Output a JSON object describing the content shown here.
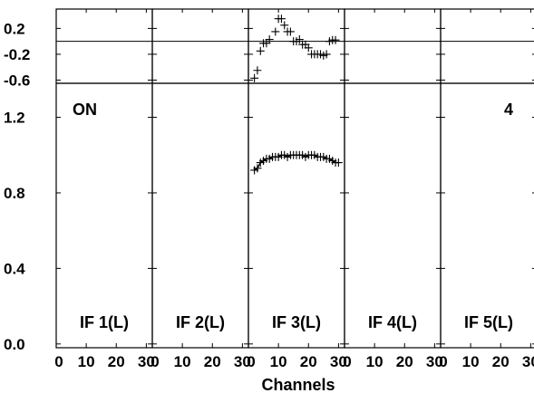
{
  "chart_data": {
    "type": "scatter",
    "xlabel": "Channels",
    "x_tick_labels": [
      "0",
      "10",
      "20",
      "30"
    ],
    "xlim": [
      0,
      32
    ],
    "panels": [
      {
        "label": "IF 1(L)",
        "ratio": [],
        "amplitude": []
      },
      {
        "label": "IF 2(L)",
        "ratio": [],
        "amplitude": []
      },
      {
        "label": "IF 3(L)",
        "ratio": [
          [
            2,
            -0.57
          ],
          [
            3,
            -0.45
          ],
          [
            4,
            -0.15
          ],
          [
            5,
            -0.03
          ],
          [
            6,
            -0.03
          ],
          [
            7,
            0.03
          ],
          [
            9,
            0.15
          ],
          [
            10,
            0.35
          ],
          [
            11,
            0.35
          ],
          [
            12,
            0.25
          ],
          [
            13,
            0.15
          ],
          [
            14,
            0.15
          ],
          [
            15,
            0.0
          ],
          [
            16,
            0.0
          ],
          [
            17,
            0.03
          ],
          [
            18,
            -0.05
          ],
          [
            19,
            -0.05
          ],
          [
            20,
            -0.1
          ],
          [
            21,
            -0.2
          ],
          [
            22,
            -0.2
          ],
          [
            23,
            -0.2
          ],
          [
            24,
            -0.2
          ],
          [
            25,
            -0.22
          ],
          [
            26,
            -0.2
          ],
          [
            27,
            0.0
          ],
          [
            28,
            0.02
          ],
          [
            29,
            0.02
          ]
        ],
        "amplitude": [
          [
            2,
            0.92
          ],
          [
            3,
            0.93
          ],
          [
            4,
            0.96
          ],
          [
            5,
            0.97
          ],
          [
            6,
            0.98
          ],
          [
            7,
            0.98
          ],
          [
            8,
            0.99
          ],
          [
            9,
            0.99
          ],
          [
            10,
            0.99
          ],
          [
            11,
            1.0
          ],
          [
            12,
            1.0
          ],
          [
            13,
            0.99
          ],
          [
            14,
            1.0
          ],
          [
            15,
            1.0
          ],
          [
            16,
            1.0
          ],
          [
            17,
            1.0
          ],
          [
            18,
            1.0
          ],
          [
            19,
            0.99
          ],
          [
            20,
            1.0
          ],
          [
            21,
            1.0
          ],
          [
            22,
            1.0
          ],
          [
            23,
            0.99
          ],
          [
            24,
            0.99
          ],
          [
            25,
            0.99
          ],
          [
            26,
            0.98
          ],
          [
            27,
            0.98
          ],
          [
            28,
            0.97
          ],
          [
            29,
            0.96
          ],
          [
            30,
            0.96
          ]
        ]
      },
      {
        "label": "IF 4(L)",
        "ratio": [],
        "amplitude": []
      },
      {
        "label": "IF 5(L)",
        "ratio": [],
        "amplitude": []
      }
    ],
    "top_y_tick_labels": [
      "0.2",
      "-0.2",
      "-0.6"
    ],
    "top_ylim": [
      -0.65,
      0.5
    ],
    "main_y_tick_labels": [
      "1.2",
      "0.8",
      "0.4",
      "0.0"
    ],
    "main_ylim": [
      -0.02,
      1.38
    ],
    "annotations": {
      "left": "ON",
      "right": "4"
    }
  }
}
